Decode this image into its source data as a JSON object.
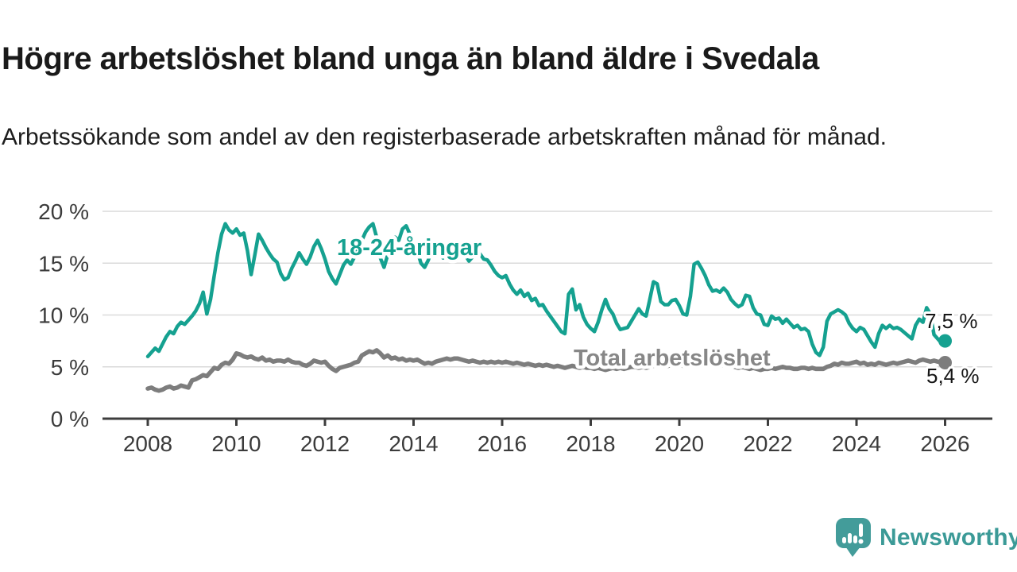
{
  "header": {
    "title": "Högre arbetslöshet bland unga än bland äldre i Svedala",
    "subtitle": "Arbetssökande som andel av den registerbaserade arbetskraften månad för månad."
  },
  "chart_data": {
    "type": "line",
    "title": "Högre arbetslöshet bland unga än bland äldre i Svedala",
    "subtitle": "Arbetssökande som andel av den registerbaserade arbetskraften månad för månad.",
    "grid": "horizontal",
    "legend_position": "inline-labels",
    "ylim": [
      0,
      21
    ],
    "y_axis": {
      "unit": "%",
      "ticks": [
        {
          "value": 0,
          "label": "0 %"
        },
        {
          "value": 5,
          "label": "5 %"
        },
        {
          "value": 10,
          "label": "10 %"
        },
        {
          "value": 15,
          "label": "15 %"
        },
        {
          "value": 20,
          "label": "20 %"
        }
      ]
    },
    "x_axis": {
      "start_year": 2008,
      "end_year": 2026,
      "resolution": "monthly",
      "ticks": [
        {
          "year": 2008,
          "label": "2008"
        },
        {
          "year": 2010,
          "label": "2010"
        },
        {
          "year": 2012,
          "label": "2012"
        },
        {
          "year": 2014,
          "label": "2014"
        },
        {
          "year": 2016,
          "label": "2016"
        },
        {
          "year": 2018,
          "label": "2018"
        },
        {
          "year": 2020,
          "label": "2020"
        },
        {
          "year": 2022,
          "label": "2022"
        },
        {
          "year": 2024,
          "label": "2024"
        },
        {
          "year": 2026,
          "label": "2026"
        }
      ]
    },
    "series": [
      {
        "id": "youth",
        "name": "18-24-åringar",
        "label": "18-24-åringar",
        "end_label": "7,5 %",
        "end_value": 7.5,
        "color": "#15a190",
        "values": [
          6.0,
          6.4,
          6.8,
          6.5,
          7.2,
          7.9,
          8.4,
          8.2,
          8.9,
          9.3,
          9.1,
          9.5,
          9.9,
          10.4,
          11.1,
          12.2,
          10.1,
          11.5,
          13.8,
          16.0,
          17.8,
          18.8,
          18.2,
          17.9,
          18.3,
          17.7,
          17.9,
          16.2,
          13.9,
          15.8,
          17.8,
          17.2,
          16.5,
          15.9,
          15.4,
          15.1,
          14.0,
          13.4,
          13.6,
          14.5,
          15.2,
          16.0,
          15.4,
          14.9,
          15.6,
          16.6,
          17.2,
          16.4,
          15.4,
          14.2,
          13.5,
          13.0,
          13.9,
          14.8,
          15.3,
          14.9,
          15.6,
          16.3,
          17.2,
          18.0,
          18.5,
          18.8,
          17.5,
          15.5,
          14.6,
          15.8,
          17.0,
          17.5,
          17.2,
          18.3,
          18.6,
          17.8,
          17.0,
          16.2,
          15.0,
          14.6,
          15.3,
          16.4,
          16.8,
          16.0,
          15.5,
          16.2,
          15.8,
          15.4,
          16.0,
          16.5,
          15.8,
          15.2,
          15.6,
          16.2,
          15.9,
          15.4,
          15.3,
          14.8,
          14.2,
          13.8,
          13.6,
          13.8,
          13.0,
          12.4,
          12.0,
          12.4,
          11.8,
          12.1,
          11.4,
          11.6,
          10.9,
          11.0,
          10.4,
          9.9,
          9.4,
          8.9,
          8.4,
          8.2,
          12.0,
          12.5,
          10.5,
          11.0,
          9.8,
          9.1,
          8.7,
          8.4,
          9.3,
          10.5,
          11.5,
          10.6,
          10.1,
          9.2,
          8.6,
          8.7,
          8.8,
          9.4,
          10.0,
          10.6,
          10.1,
          9.9,
          11.5,
          13.2,
          13.0,
          11.3,
          11.0,
          11.0,
          11.4,
          11.5,
          10.9,
          10.1,
          10.0,
          11.8,
          14.9,
          15.1,
          14.5,
          13.8,
          12.9,
          12.3,
          12.4,
          12.2,
          12.6,
          12.2,
          11.5,
          11.1,
          10.8,
          11.0,
          11.9,
          11.8,
          10.7,
          10.1,
          10.0,
          9.1,
          9.0,
          9.9,
          9.6,
          9.7,
          9.2,
          9.6,
          9.2,
          8.8,
          9.0,
          8.6,
          8.7,
          8.4,
          7.2,
          6.4,
          6.1,
          6.9,
          9.4,
          10.1,
          10.3,
          10.5,
          10.3,
          10.0,
          9.2,
          8.7,
          8.4,
          8.8,
          8.6,
          8.0,
          7.4,
          6.9,
          8.2,
          9.0,
          8.7,
          9.0,
          8.7,
          8.8,
          8.6,
          8.3,
          8.0,
          7.7,
          9.0,
          9.6,
          9.3,
          10.7,
          10.1,
          8.1,
          7.7,
          7.3,
          7.5
        ]
      },
      {
        "id": "total",
        "name": "Total arbetslöshet",
        "label": "Total arbetslöshet",
        "end_label": "5,4 %",
        "end_value": 5.4,
        "color": "#7d7d7d",
        "values": [
          2.9,
          3.0,
          2.8,
          2.7,
          2.8,
          3.0,
          3.1,
          2.9,
          3.0,
          3.2,
          3.1,
          3.0,
          3.7,
          3.8,
          4.0,
          4.2,
          4.1,
          4.5,
          4.9,
          4.8,
          5.2,
          5.4,
          5.3,
          5.7,
          6.3,
          6.2,
          6.0,
          5.9,
          6.0,
          5.8,
          5.7,
          5.9,
          5.6,
          5.7,
          5.5,
          5.6,
          5.6,
          5.5,
          5.7,
          5.5,
          5.4,
          5.4,
          5.2,
          5.1,
          5.3,
          5.6,
          5.5,
          5.4,
          5.5,
          5.1,
          4.8,
          4.6,
          4.9,
          5.0,
          5.1,
          5.2,
          5.4,
          5.5,
          6.1,
          6.3,
          6.5,
          6.4,
          6.6,
          6.3,
          5.9,
          6.1,
          5.8,
          5.9,
          5.7,
          5.8,
          5.6,
          5.7,
          5.6,
          5.7,
          5.5,
          5.3,
          5.4,
          5.3,
          5.5,
          5.6,
          5.7,
          5.8,
          5.7,
          5.8,
          5.8,
          5.7,
          5.6,
          5.5,
          5.6,
          5.5,
          5.4,
          5.5,
          5.4,
          5.5,
          5.4,
          5.5,
          5.4,
          5.5,
          5.4,
          5.3,
          5.4,
          5.3,
          5.2,
          5.3,
          5.2,
          5.1,
          5.2,
          5.1,
          5.2,
          5.1,
          5.0,
          5.1,
          5.0,
          4.9,
          5.0,
          5.1,
          5.0,
          4.9,
          5.0,
          4.9,
          4.9,
          4.8,
          4.9,
          4.8,
          4.7,
          4.8,
          4.9,
          4.8,
          4.9,
          4.8,
          4.9,
          5.0,
          5.0,
          4.9,
          5.0,
          4.9,
          5.0,
          5.1,
          5.2,
          5.1,
          5.0,
          5.1,
          5.2,
          5.1,
          5.2,
          5.1,
          5.3,
          5.6,
          5.8,
          5.7,
          5.6,
          5.5,
          5.4,
          5.3,
          5.2,
          5.3,
          5.3,
          5.2,
          5.1,
          5.0,
          4.9,
          5.0,
          4.9,
          4.8,
          4.9,
          4.8,
          4.7,
          4.8,
          4.8,
          4.9,
          4.8,
          4.9,
          5.0,
          4.9,
          4.9,
          4.8,
          4.8,
          4.9,
          4.9,
          4.8,
          4.9,
          4.8,
          4.8,
          4.8,
          5.0,
          5.1,
          5.3,
          5.2,
          5.4,
          5.3,
          5.3,
          5.4,
          5.5,
          5.3,
          5.4,
          5.2,
          5.3,
          5.2,
          5.4,
          5.3,
          5.2,
          5.3,
          5.4,
          5.3,
          5.4,
          5.5,
          5.6,
          5.5,
          5.4,
          5.6,
          5.7,
          5.6,
          5.5,
          5.6,
          5.5,
          5.5,
          5.4
        ]
      }
    ]
  },
  "footer": {
    "brand": "Newsworthy",
    "logo_icon": "speech-bubble-bar-chart-exclamation"
  },
  "colors": {
    "youth_line": "#15a190",
    "total_line": "#7d7d7d",
    "total_label_text": "#878787",
    "axis": "#3d3d3d",
    "gridline": "#dadada",
    "brand_teal": "#3b9a97",
    "logo_bubble": "#439c9a",
    "title_text": "#1a1a1a"
  }
}
